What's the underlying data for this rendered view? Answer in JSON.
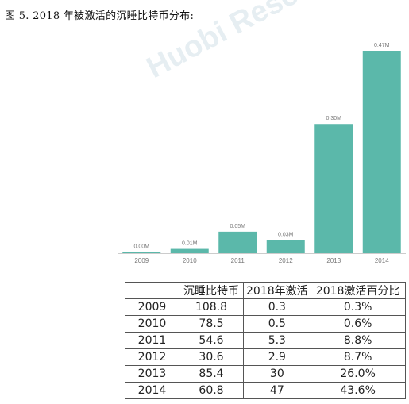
{
  "figure": {
    "title": "图 5.    2018 年被激活的沉睡比特币分布:"
  },
  "watermark": "Huobi Research",
  "colors": {
    "bar": "#5bb8aa",
    "axis": "#cccccc",
    "label": "#777777"
  },
  "chart_data": {
    "type": "bar",
    "categories": [
      "2009",
      "2010",
      "2011",
      "2012",
      "2013",
      "2014"
    ],
    "values": [
      0.0,
      0.01,
      0.05,
      0.03,
      0.3,
      0.47
    ],
    "data_labels": [
      "0.00M",
      "0.01M",
      "0.05M",
      "0.03M",
      "0.30M",
      "0.47M"
    ],
    "title": "",
    "xlabel": "",
    "ylabel": "",
    "ylim": [
      0,
      0.47
    ],
    "grid": false,
    "legend": "none"
  },
  "table": {
    "headers": [
      "",
      "沉睡比特币",
      "2018年激活",
      "2018激活百分比"
    ],
    "rows": [
      [
        "2009",
        "108.8",
        "0.3",
        "0.3%"
      ],
      [
        "2010",
        "78.5",
        "0.5",
        "0.6%"
      ],
      [
        "2011",
        "54.6",
        "5.3",
        "8.8%"
      ],
      [
        "2012",
        "30.6",
        "2.9",
        "8.7%"
      ],
      [
        "2013",
        "85.4",
        "30",
        "26.0%"
      ],
      [
        "2014",
        "60.8",
        "47",
        "43.6%"
      ]
    ]
  }
}
